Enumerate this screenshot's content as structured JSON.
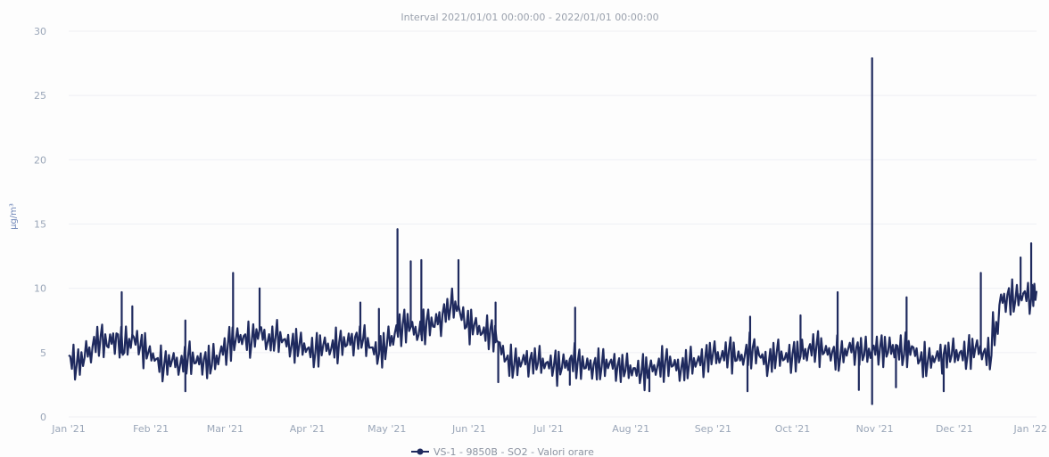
{
  "chart_data": {
    "type": "line",
    "subtitle": "Interval 2021/01/01 00:00:00 - 2022/01/01 00:00:00",
    "ylabel": "μg/m³",
    "ylim": [
      0,
      30
    ],
    "yticks": [
      0,
      5,
      10,
      15,
      20,
      25,
      30
    ],
    "xlim": [
      "2021-01-01",
      "2022-01-01"
    ],
    "xticks": [
      {
        "date": "2021-01-01",
        "label": "Jan '21"
      },
      {
        "date": "2021-02-01",
        "label": "Feb '21"
      },
      {
        "date": "2021-03-01",
        "label": "Mar '21"
      },
      {
        "date": "2021-04-01",
        "label": "Apr '21"
      },
      {
        "date": "2021-05-01",
        "label": "May '21"
      },
      {
        "date": "2021-06-01",
        "label": "Jun '21"
      },
      {
        "date": "2021-07-01",
        "label": "Jul '21"
      },
      {
        "date": "2021-08-01",
        "label": "Aug '21"
      },
      {
        "date": "2021-09-01",
        "label": "Sep '21"
      },
      {
        "date": "2021-10-01",
        "label": "Oct '21"
      },
      {
        "date": "2021-11-01",
        "label": "Nov '21"
      },
      {
        "date": "2021-12-01",
        "label": "Dec '21"
      },
      {
        "date": "2022-01-01",
        "label": "Jan '22"
      }
    ],
    "grid": true,
    "legend_position": "bottom-center",
    "series": [
      {
        "name": "VS-1 - 9850B - SO2 - Valori orare",
        "color": "#1f2a5e",
        "points": [
          [
            "2021-01-01",
            4.8
          ],
          [
            "2021-01-04",
            4.0
          ],
          [
            "2021-01-07",
            4.6
          ],
          [
            "2021-01-10",
            5.5
          ],
          [
            "2021-01-13",
            6.2
          ],
          [
            "2021-01-16",
            5.4
          ],
          [
            "2021-01-19",
            6.5
          ],
          [
            "2021-01-22",
            5.0
          ],
          [
            "2021-01-25",
            6.4
          ],
          [
            "2021-01-28",
            5.5
          ],
          [
            "2021-01-31",
            5.0
          ],
          [
            "2021-02-03",
            4.5
          ],
          [
            "2021-02-06",
            4.0
          ],
          [
            "2021-02-09",
            4.4
          ],
          [
            "2021-02-12",
            4.0
          ],
          [
            "2021-02-15",
            4.7
          ],
          [
            "2021-02-18",
            4.2
          ],
          [
            "2021-02-21",
            4.5
          ],
          [
            "2021-02-24",
            4.0
          ],
          [
            "2021-02-27",
            4.9
          ],
          [
            "2021-03-02",
            5.6
          ],
          [
            "2021-03-05",
            6.0
          ],
          [
            "2021-03-08",
            6.3
          ],
          [
            "2021-03-11",
            5.8
          ],
          [
            "2021-03-14",
            6.8
          ],
          [
            "2021-03-17",
            5.8
          ],
          [
            "2021-03-20",
            6.2
          ],
          [
            "2021-03-23",
            6.0
          ],
          [
            "2021-03-26",
            5.5
          ],
          [
            "2021-03-29",
            5.6
          ],
          [
            "2021-04-01",
            5.3
          ],
          [
            "2021-04-04",
            5.0
          ],
          [
            "2021-04-07",
            5.6
          ],
          [
            "2021-04-10",
            5.3
          ],
          [
            "2021-04-13",
            5.8
          ],
          [
            "2021-04-16",
            5.6
          ],
          [
            "2021-04-19",
            6.2
          ],
          [
            "2021-04-22",
            6.0
          ],
          [
            "2021-04-25",
            5.4
          ],
          [
            "2021-04-28",
            4.9
          ],
          [
            "2021-05-01",
            5.6
          ],
          [
            "2021-05-04",
            6.5
          ],
          [
            "2021-05-07",
            7.2
          ],
          [
            "2021-05-10",
            7.0
          ],
          [
            "2021-05-13",
            6.4
          ],
          [
            "2021-05-16",
            7.5
          ],
          [
            "2021-05-19",
            7.0
          ],
          [
            "2021-05-22",
            8.0
          ],
          [
            "2021-05-25",
            8.5
          ],
          [
            "2021-05-28",
            8.7
          ],
          [
            "2021-05-31",
            7.0
          ],
          [
            "2021-06-03",
            7.2
          ],
          [
            "2021-06-06",
            6.5
          ],
          [
            "2021-06-09",
            6.8
          ],
          [
            "2021-06-12",
            5.8
          ],
          [
            "2021-06-15",
            4.5
          ],
          [
            "2021-06-18",
            4.0
          ],
          [
            "2021-06-21",
            4.3
          ],
          [
            "2021-06-24",
            4.5
          ],
          [
            "2021-06-27",
            4.2
          ],
          [
            "2021-06-30",
            4.2
          ],
          [
            "2021-07-03",
            4.0
          ],
          [
            "2021-07-06",
            3.8
          ],
          [
            "2021-07-09",
            4.5
          ],
          [
            "2021-07-12",
            4.3
          ],
          [
            "2021-07-15",
            3.8
          ],
          [
            "2021-07-18",
            4.1
          ],
          [
            "2021-07-21",
            3.9
          ],
          [
            "2021-07-24",
            4.2
          ],
          [
            "2021-07-27",
            4.0
          ],
          [
            "2021-07-30",
            3.6
          ],
          [
            "2021-08-02",
            3.8
          ],
          [
            "2021-08-05",
            3.4
          ],
          [
            "2021-08-08",
            3.7
          ],
          [
            "2021-08-11",
            3.9
          ],
          [
            "2021-08-14",
            4.3
          ],
          [
            "2021-08-17",
            4.0
          ],
          [
            "2021-08-20",
            3.8
          ],
          [
            "2021-08-23",
            4.1
          ],
          [
            "2021-08-26",
            4.3
          ],
          [
            "2021-08-29",
            4.5
          ],
          [
            "2021-09-01",
            4.9
          ],
          [
            "2021-09-04",
            4.6
          ],
          [
            "2021-09-07",
            5.2
          ],
          [
            "2021-09-10",
            4.4
          ],
          [
            "2021-09-13",
            4.8
          ],
          [
            "2021-09-16",
            5.4
          ],
          [
            "2021-09-19",
            4.6
          ],
          [
            "2021-09-22",
            4.2
          ],
          [
            "2021-09-25",
            5.0
          ],
          [
            "2021-09-28",
            4.5
          ],
          [
            "2021-10-01",
            4.9
          ],
          [
            "2021-10-04",
            4.7
          ],
          [
            "2021-10-07",
            5.3
          ],
          [
            "2021-10-10",
            5.5
          ],
          [
            "2021-10-13",
            5.0
          ],
          [
            "2021-10-16",
            5.1
          ],
          [
            "2021-10-19",
            4.6
          ],
          [
            "2021-10-22",
            5.3
          ],
          [
            "2021-10-25",
            5.4
          ],
          [
            "2021-10-28",
            4.8
          ],
          [
            "2021-10-31",
            5.2
          ],
          [
            "2021-11-03",
            5.4
          ],
          [
            "2021-11-06",
            5.0
          ],
          [
            "2021-11-09",
            5.6
          ],
          [
            "2021-11-12",
            4.8
          ],
          [
            "2021-11-15",
            5.5
          ],
          [
            "2021-11-18",
            4.4
          ],
          [
            "2021-11-21",
            4.3
          ],
          [
            "2021-11-24",
            4.6
          ],
          [
            "2021-11-27",
            4.9
          ],
          [
            "2021-11-30",
            4.8
          ],
          [
            "2021-12-03",
            5.0
          ],
          [
            "2021-12-06",
            4.8
          ],
          [
            "2021-12-09",
            5.4
          ],
          [
            "2021-12-12",
            5.0
          ],
          [
            "2021-12-15",
            4.8
          ],
          [
            "2021-12-18",
            8.7
          ],
          [
            "2021-12-21",
            9.5
          ],
          [
            "2021-12-24",
            9.0
          ],
          [
            "2021-12-27",
            9.6
          ],
          [
            "2021-12-30",
            9.3
          ],
          [
            "2022-01-01",
            9.8
          ]
        ],
        "spikes": [
          [
            "2021-01-21",
            9.7
          ],
          [
            "2021-01-25",
            8.6
          ],
          [
            "2021-02-14",
            7.5
          ],
          [
            "2021-02-14",
            2.0
          ],
          [
            "2021-03-04",
            11.2
          ],
          [
            "2021-03-14",
            10.0
          ],
          [
            "2021-04-21",
            8.9
          ],
          [
            "2021-04-28",
            8.4
          ],
          [
            "2021-05-05",
            14.6
          ],
          [
            "2021-05-10",
            12.1
          ],
          [
            "2021-05-14",
            12.2
          ],
          [
            "2021-05-28",
            12.2
          ],
          [
            "2021-06-11",
            8.9
          ],
          [
            "2021-06-12",
            2.7
          ],
          [
            "2021-07-11",
            8.5
          ],
          [
            "2021-07-09",
            2.5
          ],
          [
            "2021-08-08",
            2.0
          ],
          [
            "2021-09-15",
            7.8
          ],
          [
            "2021-09-14",
            2.0
          ],
          [
            "2021-10-04",
            7.9
          ],
          [
            "2021-10-18",
            9.7
          ],
          [
            "2021-10-26",
            2.1
          ],
          [
            "2021-10-31",
            27.9
          ],
          [
            "2021-10-31",
            1.0
          ],
          [
            "2021-11-13",
            9.3
          ],
          [
            "2021-11-09",
            2.3
          ],
          [
            "2021-11-27",
            2.0
          ],
          [
            "2021-12-11",
            11.2
          ],
          [
            "2021-12-26",
            12.4
          ],
          [
            "2021-12-30",
            13.5
          ]
        ]
      }
    ]
  }
}
